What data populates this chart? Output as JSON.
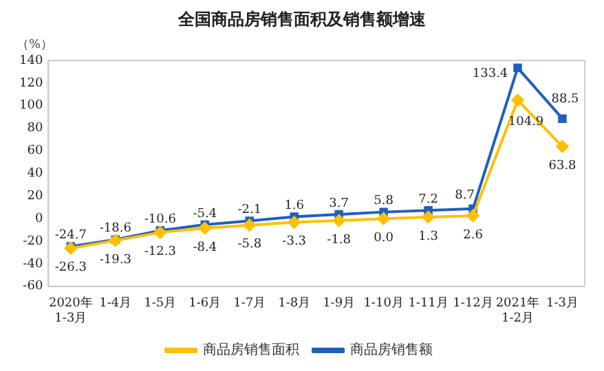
{
  "chart_data": {
    "type": "line",
    "title": "全国商品房销售面积及销售额增速",
    "ylabel": "（%）",
    "categories": [
      "2020年\n1-3月",
      "1-4月",
      "1-5月",
      "1-6月",
      "1-7月",
      "1-8月",
      "1-9月",
      "1-10月",
      "1-11月",
      "1-12月",
      "2021年\n1-2月",
      "1-3月"
    ],
    "series": [
      {
        "name": "商品房销售面积",
        "color": "#ffc000",
        "marker": "diamond",
        "values": [
          -26.3,
          -19.3,
          -12.3,
          -8.4,
          -5.8,
          -3.3,
          -1.8,
          0.0,
          1.3,
          2.6,
          104.9,
          63.8
        ],
        "value_labels": [
          "-26.3",
          "-19.3",
          "-12.3",
          "-8.4",
          "-5.8",
          "-3.3",
          "-1.8",
          "0.0",
          "1.3",
          "2.6",
          "104.9",
          "63.8"
        ]
      },
      {
        "name": "商品房销售额",
        "color": "#1f5fbf",
        "marker": "square",
        "values": [
          -24.7,
          -18.6,
          -10.6,
          -5.4,
          -2.1,
          1.6,
          3.7,
          5.8,
          7.2,
          8.7,
          133.4,
          88.5
        ],
        "value_labels": [
          "-24.7",
          "-18.6",
          "-10.6",
          "-5.4",
          "-2.1",
          "1.6",
          "3.7",
          "5.8",
          "7.2",
          "8.7",
          "133.4",
          "88.5"
        ]
      }
    ],
    "ylim": [
      -60,
      140
    ],
    "yticks": [
      -60,
      -40,
      -20,
      0,
      20,
      40,
      60,
      80,
      100,
      120,
      140
    ],
    "grid": false,
    "legend": "bottom",
    "line_style": "solid"
  }
}
